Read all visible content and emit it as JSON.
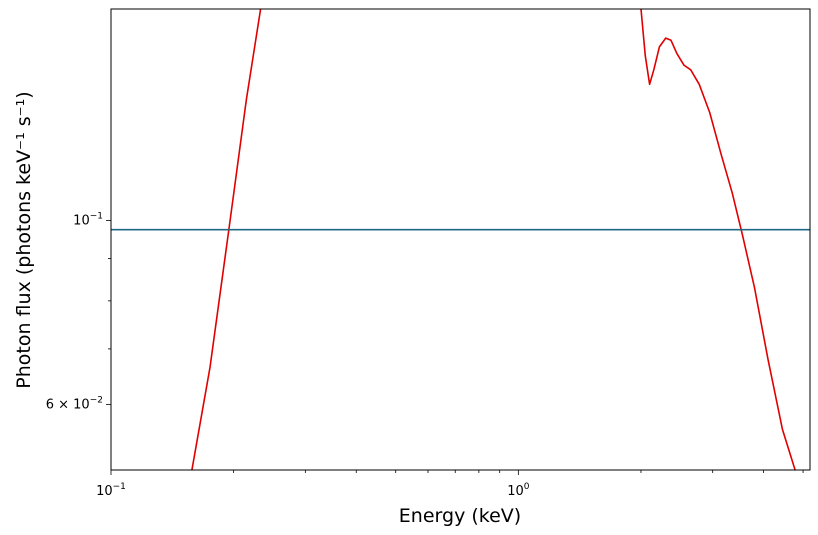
{
  "chart_data": {
    "type": "line",
    "title": "",
    "xlabel": "Energy (keV)",
    "ylabel": "Photon flux (photons keV⁻¹ s⁻¹)",
    "x_scale": "log",
    "y_scale": "log",
    "xlim": [
      0.1,
      5.2
    ],
    "ylim": [
      0.05,
      0.18
    ],
    "grid": false,
    "legend": "none",
    "x_ticks": [
      {
        "value": 0.1,
        "base": "10",
        "exp": "−1"
      },
      {
        "value": 1.0,
        "base": "10",
        "exp": "0"
      }
    ],
    "y_ticks": [
      {
        "value": 0.1,
        "base": "10",
        "exp": "−1",
        "mantissa": ""
      },
      {
        "value": 0.06,
        "base": "10",
        "exp": "−2",
        "mantissa": "6 × "
      }
    ],
    "series": [
      {
        "color": "#e00000",
        "segments": [
          [
            [
              0.158,
              0.05
            ],
            [
              0.175,
              0.0665
            ],
            [
              0.195,
              0.098
            ],
            [
              0.215,
              0.14
            ],
            [
              0.233,
              0.18
            ]
          ],
          [
            [
              2.0,
              0.18
            ],
            [
              2.05,
              0.158
            ],
            [
              2.1,
              0.146
            ],
            [
              2.15,
              0.152
            ],
            [
              2.22,
              0.162
            ],
            [
              2.3,
              0.166
            ],
            [
              2.37,
              0.165
            ],
            [
              2.45,
              0.159
            ],
            [
              2.55,
              0.154
            ],
            [
              2.65,
              0.152
            ],
            [
              2.78,
              0.146
            ],
            [
              2.95,
              0.135
            ],
            [
              3.15,
              0.12
            ],
            [
              3.35,
              0.108
            ],
            [
              3.55,
              0.096
            ],
            [
              3.8,
              0.083
            ],
            [
              4.1,
              0.068
            ],
            [
              4.45,
              0.056
            ],
            [
              4.78,
              0.05
            ]
          ]
        ]
      },
      {
        "color": "#1f6b85",
        "segments": [
          [
            [
              0.1,
              0.0975
            ],
            [
              5.2,
              0.0975
            ]
          ]
        ]
      }
    ]
  }
}
